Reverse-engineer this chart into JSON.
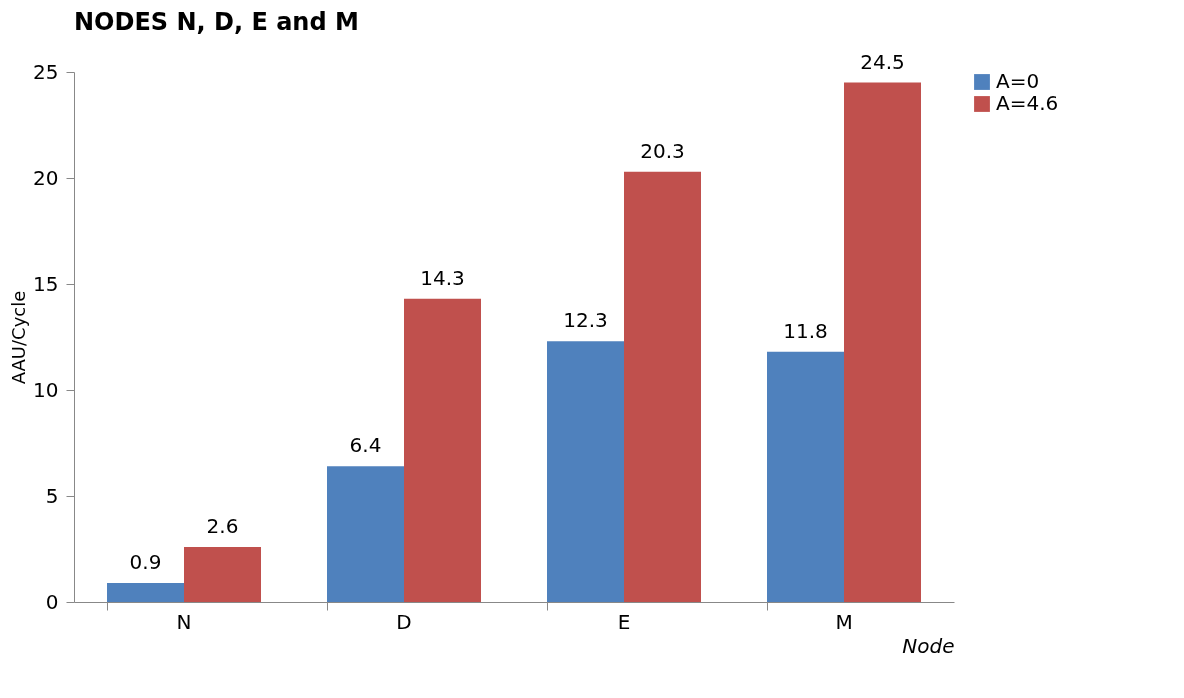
{
  "chart_data": {
    "type": "bar",
    "title": "NODES N, D, E and M",
    "xlabel": "Node",
    "ylabel": "AAU/Cycle",
    "categories": [
      "N",
      "D",
      "E",
      "M"
    ],
    "series": [
      {
        "name": "A=0",
        "color": "#4f81bd",
        "values": [
          0.9,
          6.4,
          12.3,
          11.8
        ]
      },
      {
        "name": "A=4.6",
        "color": "#c0504d",
        "values": [
          2.6,
          14.3,
          20.3,
          24.5
        ]
      }
    ],
    "ylim": [
      0,
      25
    ],
    "yticks": [
      0,
      5,
      10,
      15,
      20,
      25
    ],
    "grid": false,
    "legend": "right",
    "data_labels": true
  }
}
